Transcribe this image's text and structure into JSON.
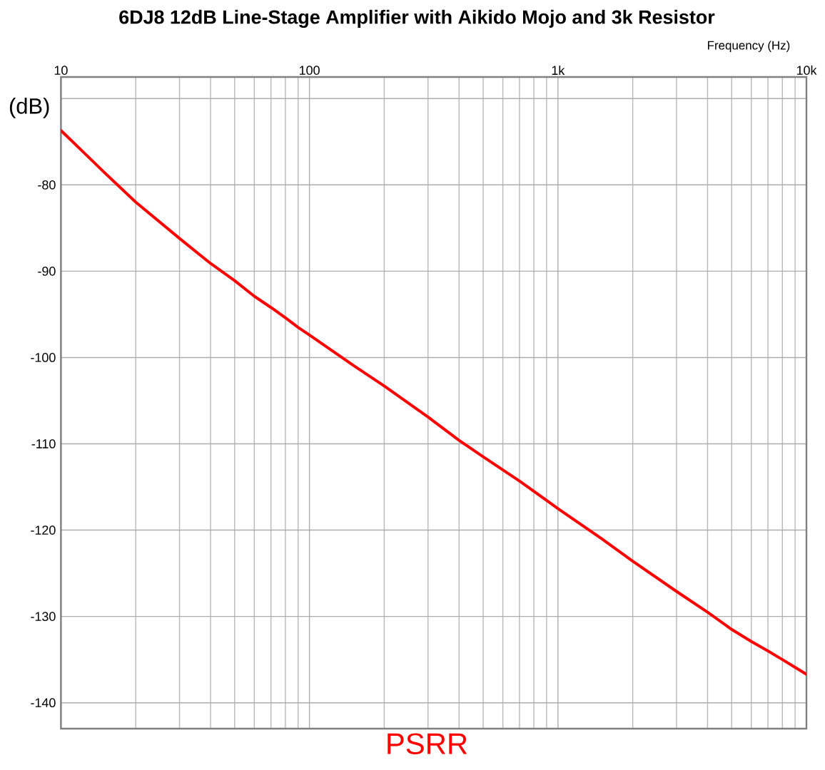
{
  "chart_data": {
    "type": "line",
    "title": "6DJ8 12dB Line-Stage Amplifier with Aikido Mojo and 3k Resistor",
    "xlabel": "Frequency (Hz)",
    "ylabel": "(dB)",
    "log": "x",
    "grid": true,
    "legend": "bottom",
    "xlim": [
      10,
      10000
    ],
    "xticks": [
      10,
      100,
      {
        "value": 1000,
        "label": "1k"
      },
      {
        "value": 10000,
        "label": "10k"
      }
    ],
    "ylim": [
      -143,
      -67.5
    ],
    "yticks": [
      -140,
      -130,
      -120,
      -110,
      -100,
      -90,
      -80,
      {
        "value": -70,
        "label": null
      }
    ],
    "x": [
      10,
      12,
      15,
      20,
      30,
      40,
      50,
      60,
      70,
      80,
      90,
      100,
      150,
      200,
      300,
      400,
      500,
      700,
      1000,
      1500,
      2000,
      3000,
      4000,
      5000,
      6000,
      7000,
      8000,
      9000,
      10000
    ],
    "series": [
      {
        "name": "PSRR",
        "color": "#ff0000",
        "values": [
          -73.7,
          -75.9,
          -78.6,
          -82.0,
          -86.2,
          -89.1,
          -91.1,
          -92.9,
          -94.2,
          -95.4,
          -96.5,
          -97.4,
          -100.9,
          -103.3,
          -106.9,
          -109.6,
          -111.5,
          -114.3,
          -117.5,
          -121.0,
          -123.6,
          -127.1,
          -129.5,
          -131.5,
          -132.9,
          -134.0,
          -135.0,
          -135.9,
          -136.7
        ]
      }
    ]
  }
}
